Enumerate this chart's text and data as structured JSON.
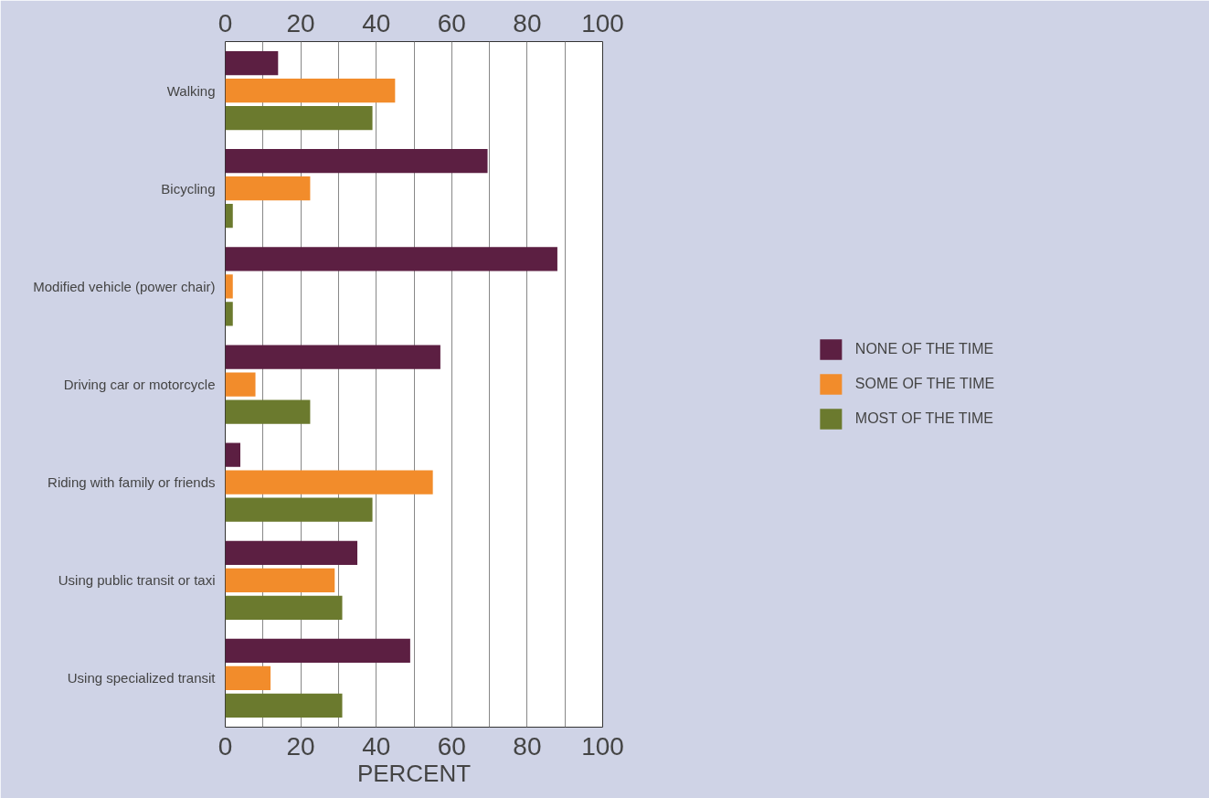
{
  "chart_data": {
    "type": "bar",
    "orientation": "horizontal",
    "xlabel": "PERCENT",
    "categories": [
      "Walking",
      "Bicycling",
      "Modified vehicle (power chair)",
      "Driving car or motorcycle",
      "Riding with family or friends",
      "Using public transit or taxi",
      "Using specialized transit"
    ],
    "series": [
      {
        "name": "NONE OF THE TIME",
        "color": "#5c1f42",
        "values": [
          14,
          69.5,
          88,
          57,
          4,
          35,
          49
        ]
      },
      {
        "name": "SOME OF THE TIME",
        "color": "#f28c2b",
        "values": [
          45,
          22.5,
          2,
          8,
          55,
          29,
          12
        ]
      },
      {
        "name": "MOST OF THE TIME",
        "color": "#6b7a2e",
        "values": [
          39,
          2,
          2,
          22.5,
          39,
          31,
          31
        ]
      }
    ],
    "xlim": [
      0,
      100
    ],
    "xticks": [
      0,
      {
        "value": 10,
        "label": null
      },
      20,
      {
        "value": 30,
        "label": null
      },
      40,
      {
        "value": 50,
        "label": null
      },
      60,
      {
        "value": 70,
        "label": null
      },
      80,
      {
        "value": 90,
        "label": null
      },
      100
    ],
    "x2lim": [
      0,
      100
    ],
    "x2ticks": [
      0,
      20,
      40,
      60,
      80,
      100
    ],
    "grid": "x",
    "legend": "right"
  }
}
